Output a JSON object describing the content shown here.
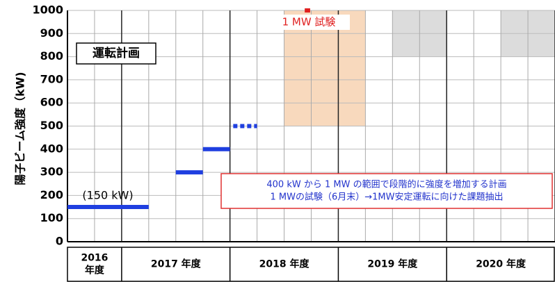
{
  "chart_data": {
    "type": "segment",
    "y_label": "陽子ビーム強度（kW)",
    "ylim": [
      0,
      1000
    ],
    "yticks": [
      0,
      100,
      200,
      300,
      400,
      500,
      600,
      700,
      800,
      900,
      1000
    ],
    "xlim": [
      2016.5,
      2021
    ],
    "categories": [
      "2016 年度",
      "2017 年度",
      "2018 年度",
      "2019 年度",
      "2020 年度"
    ],
    "grid": true,
    "segments": [
      {
        "x": [
          2016.5,
          2017.25
        ],
        "value": 150,
        "color": "#1f3fe0",
        "dashed": false
      },
      {
        "x": [
          2017.5,
          2017.75
        ],
        "value": 300,
        "color": "#1f3fe0",
        "dashed": false
      },
      {
        "x": [
          2017.75,
          2018
        ],
        "value": 400,
        "color": "#1f3fe0",
        "dashed": false
      },
      {
        "x": [
          2018.03,
          2018.25
        ],
        "value": 500,
        "color": "#1f3fe0",
        "dashed": true
      },
      {
        "x": [
          2018.69,
          2018.74
        ],
        "value": 1000,
        "color": "#e02020",
        "dashed": false
      }
    ],
    "regions": [
      {
        "x": [
          2018.5,
          2019.25
        ],
        "y": [
          500,
          1000
        ],
        "color": "#f8d9bd"
      },
      {
        "x": [
          2019.5,
          2020
        ],
        "y": [
          800,
          1000
        ],
        "color": "#dcdcdc"
      },
      {
        "x": [
          2020.5,
          2021
        ],
        "y": [
          800,
          1000
        ],
        "color": "#dcdcdc"
      }
    ],
    "annotations": {
      "plan": "運転計画",
      "power": "(150 kW)",
      "test": "1 MW 試験",
      "note": [
        "400 kW から 1 MW の範囲で段階的に強度を増加する計画",
        "1 MWの試験（6月末）→1MW安定運転に向けた課題抽出"
      ]
    }
  }
}
